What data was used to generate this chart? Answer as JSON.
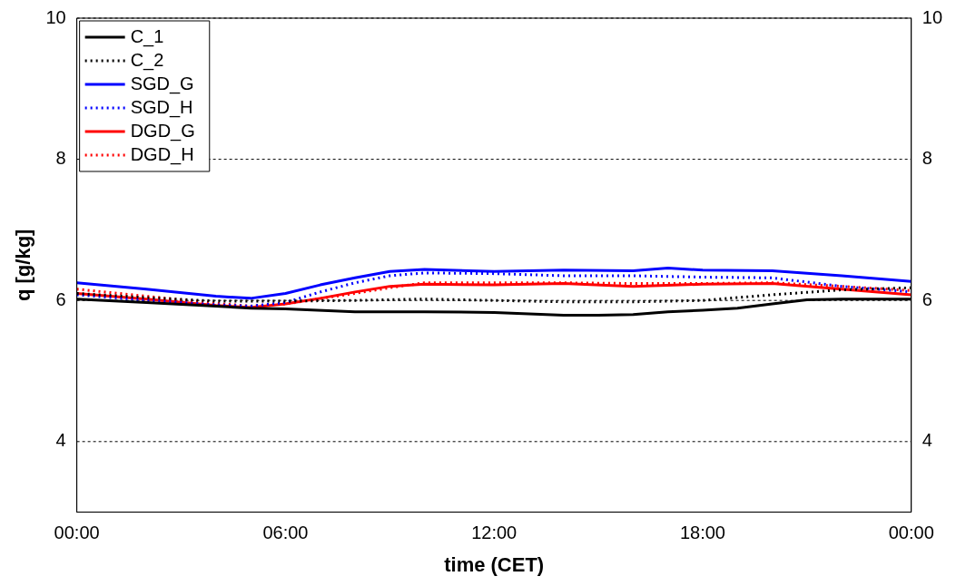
{
  "chart_data": {
    "type": "line",
    "xlabel": "time (CET)",
    "ylabel": "q [g/kg]",
    "xlim": [
      0,
      24
    ],
    "xticks": [
      {
        "value": 0,
        "label": "00:00"
      },
      {
        "value": 6,
        "label": "06:00"
      },
      {
        "value": 12,
        "label": "12:00"
      },
      {
        "value": 18,
        "label": "18:00"
      },
      {
        "value": 24,
        "label": "00:00"
      }
    ],
    "ylim": [
      3,
      10
    ],
    "yticks": [
      4,
      6,
      8,
      10
    ],
    "y2lim": [
      3,
      10
    ],
    "y2ticks": [
      4,
      6,
      8,
      10
    ],
    "grid": "y",
    "legend": "top left",
    "marker": "none",
    "series": [
      {
        "name": "C_1",
        "color": "#000000",
        "line_style": "solid",
        "x": [
          0,
          2,
          4,
          5,
          6,
          8,
          10,
          12,
          14,
          15,
          16,
          17,
          18,
          19,
          20,
          21,
          22,
          24
        ],
        "values": [
          6.02,
          5.97,
          5.92,
          5.89,
          5.88,
          5.84,
          5.84,
          5.83,
          5.79,
          5.79,
          5.8,
          5.84,
          5.86,
          5.89,
          5.95,
          6.01,
          6.02,
          6.02
        ]
      },
      {
        "name": "C_2",
        "color": "#000000",
        "line_style": "dotted",
        "x": [
          0,
          2,
          4,
          6,
          8,
          10,
          12,
          14,
          16,
          18,
          20,
          22,
          24
        ],
        "values": [
          6.1,
          6.04,
          5.99,
          5.99,
          6.0,
          6.02,
          6.0,
          5.98,
          5.98,
          6.0,
          6.08,
          6.15,
          6.18
        ]
      },
      {
        "name": "SGD_G",
        "color": "#0000ff",
        "line_style": "solid",
        "x": [
          0,
          2,
          4,
          5,
          6,
          7,
          8,
          9,
          10,
          12,
          14,
          16,
          17,
          18,
          20,
          22,
          24
        ],
        "values": [
          6.25,
          6.16,
          6.06,
          6.03,
          6.1,
          6.22,
          6.32,
          6.41,
          6.44,
          6.41,
          6.43,
          6.42,
          6.46,
          6.43,
          6.42,
          6.35,
          6.27
        ]
      },
      {
        "name": "SGD_H",
        "color": "#0000ff",
        "line_style": "dotted",
        "x": [
          0,
          2,
          4,
          5,
          6,
          7,
          8,
          9,
          10,
          12,
          14,
          16,
          18,
          20,
          22,
          24
        ],
        "values": [
          6.08,
          6.0,
          5.94,
          5.92,
          5.97,
          6.12,
          6.25,
          6.35,
          6.39,
          6.38,
          6.35,
          6.35,
          6.33,
          6.32,
          6.2,
          6.12
        ]
      },
      {
        "name": "DGD_G",
        "color": "#ff0000",
        "line_style": "solid",
        "x": [
          0,
          2,
          4,
          5,
          6,
          7,
          8,
          9,
          10,
          12,
          14,
          16,
          18,
          20,
          22,
          24
        ],
        "values": [
          6.1,
          6.02,
          5.93,
          5.9,
          5.95,
          6.03,
          6.12,
          6.2,
          6.23,
          6.22,
          6.24,
          6.2,
          6.23,
          6.24,
          6.16,
          6.08
        ]
      },
      {
        "name": "DGD_H",
        "color": "#ff0000",
        "line_style": "dotted",
        "x": [
          0,
          2,
          4,
          5,
          6,
          8,
          9,
          10,
          12,
          14,
          16,
          18,
          20,
          22,
          24
        ],
        "values": [
          6.16,
          6.06,
          5.96,
          5.92,
          5.95,
          6.1,
          6.18,
          6.25,
          6.25,
          6.25,
          6.24,
          6.24,
          6.25,
          6.2,
          6.14
        ]
      }
    ]
  }
}
